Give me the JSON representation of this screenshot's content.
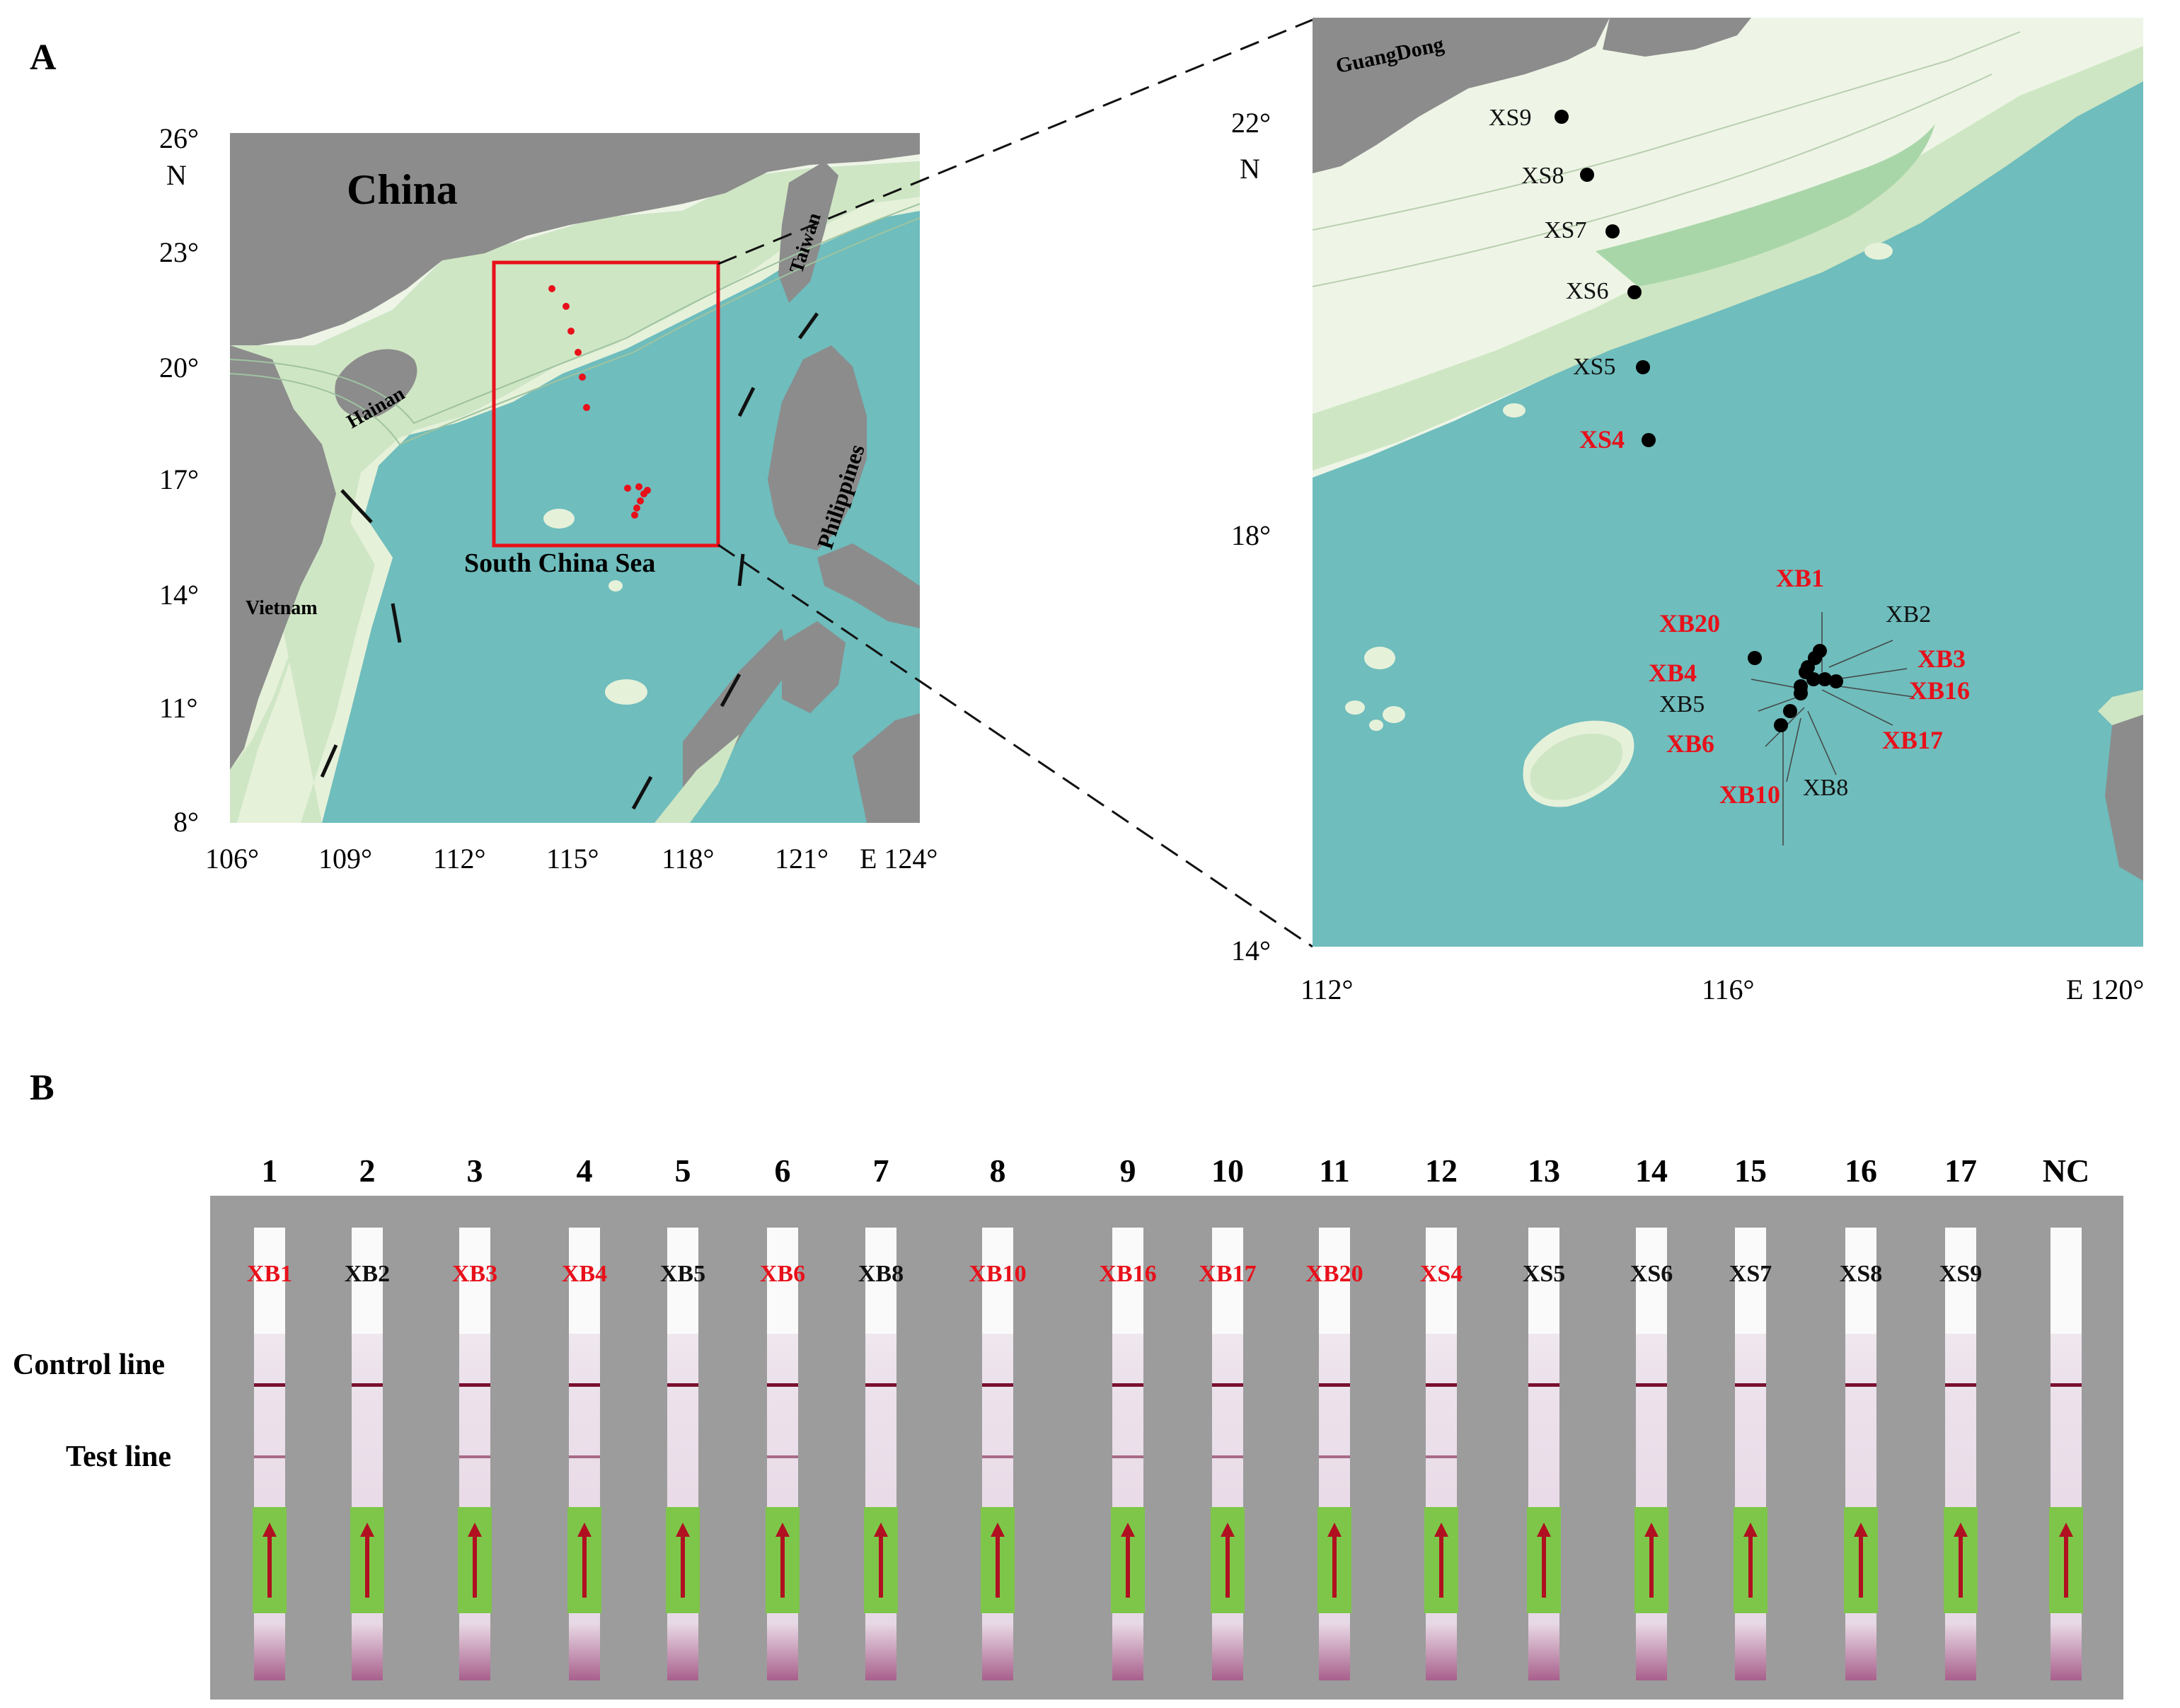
{
  "panel_a": {
    "letter": "A",
    "overview_map": {
      "lat_ticks": [
        "26°",
        "23°",
        "20°",
        "17°",
        "14°",
        "11°",
        "8°"
      ],
      "lat_unit": "N",
      "lon_ticks": [
        "106°",
        "109°",
        "112°",
        "115°",
        "118°",
        "121°",
        "E 124°"
      ],
      "labels": {
        "china": "China",
        "taiwan": "Taiwan",
        "hainan": "Hainan",
        "philippines": "Philippines",
        "vietnam": "Vietnam",
        "sea": "South China Sea"
      }
    },
    "inset_map": {
      "region_label": "GuangDong",
      "lat_ticks": [
        "22°",
        "18°",
        "14°"
      ],
      "lat_unit": "N",
      "lon_ticks": [
        "112°",
        "116°",
        "E 120°"
      ],
      "stations_black": [
        "XS9",
        "XS8",
        "XS7",
        "XS6",
        "XS5",
        "XB2",
        "XB5",
        "XB8"
      ],
      "stations_red": [
        "XS4",
        "XB1",
        "XB20",
        "XB3",
        "XB4",
        "XB16",
        "XB6",
        "XB17",
        "XB10"
      ]
    }
  },
  "panel_b": {
    "letter": "B",
    "row_labels": {
      "control": "Control line",
      "test": "Test line"
    },
    "lanes": [
      {
        "num": "1",
        "label": "XB1",
        "color": "red",
        "test_line": true
      },
      {
        "num": "2",
        "label": "XB2",
        "color": "black",
        "test_line": false
      },
      {
        "num": "3",
        "label": "XB3",
        "color": "red",
        "test_line": true
      },
      {
        "num": "4",
        "label": "XB4",
        "color": "red",
        "test_line": true
      },
      {
        "num": "5",
        "label": "XB5",
        "color": "black",
        "test_line": false
      },
      {
        "num": "6",
        "label": "XB6",
        "color": "red",
        "test_line": true
      },
      {
        "num": "7",
        "label": "XB8",
        "color": "black",
        "test_line": false
      },
      {
        "num": "8",
        "label": "XB10",
        "color": "red",
        "test_line": true
      },
      {
        "num": "9",
        "label": "XB16",
        "color": "red",
        "test_line": true
      },
      {
        "num": "10",
        "label": "XB17",
        "color": "red",
        "test_line": true
      },
      {
        "num": "11",
        "label": "XB20",
        "color": "red",
        "test_line": true
      },
      {
        "num": "12",
        "label": "XS4",
        "color": "red",
        "test_line": true
      },
      {
        "num": "13",
        "label": "XS5",
        "color": "black",
        "test_line": false
      },
      {
        "num": "14",
        "label": "XS6",
        "color": "black",
        "test_line": false
      },
      {
        "num": "15",
        "label": "XS7",
        "color": "black",
        "test_line": false
      },
      {
        "num": "16",
        "label": "XS8",
        "color": "black",
        "test_line": false
      },
      {
        "num": "17",
        "label": "XS9",
        "color": "black",
        "test_line": false
      },
      {
        "num": "NC",
        "label": "",
        "color": "black",
        "test_line": false
      }
    ]
  },
  "colors": {
    "sea": "#6fbdbd",
    "land": "#8c8c8c",
    "shelf": "#eef5e6",
    "highlight": "#e8101a",
    "strip_bg": "#9c9c9c",
    "pad_green": "#7ec64a"
  }
}
